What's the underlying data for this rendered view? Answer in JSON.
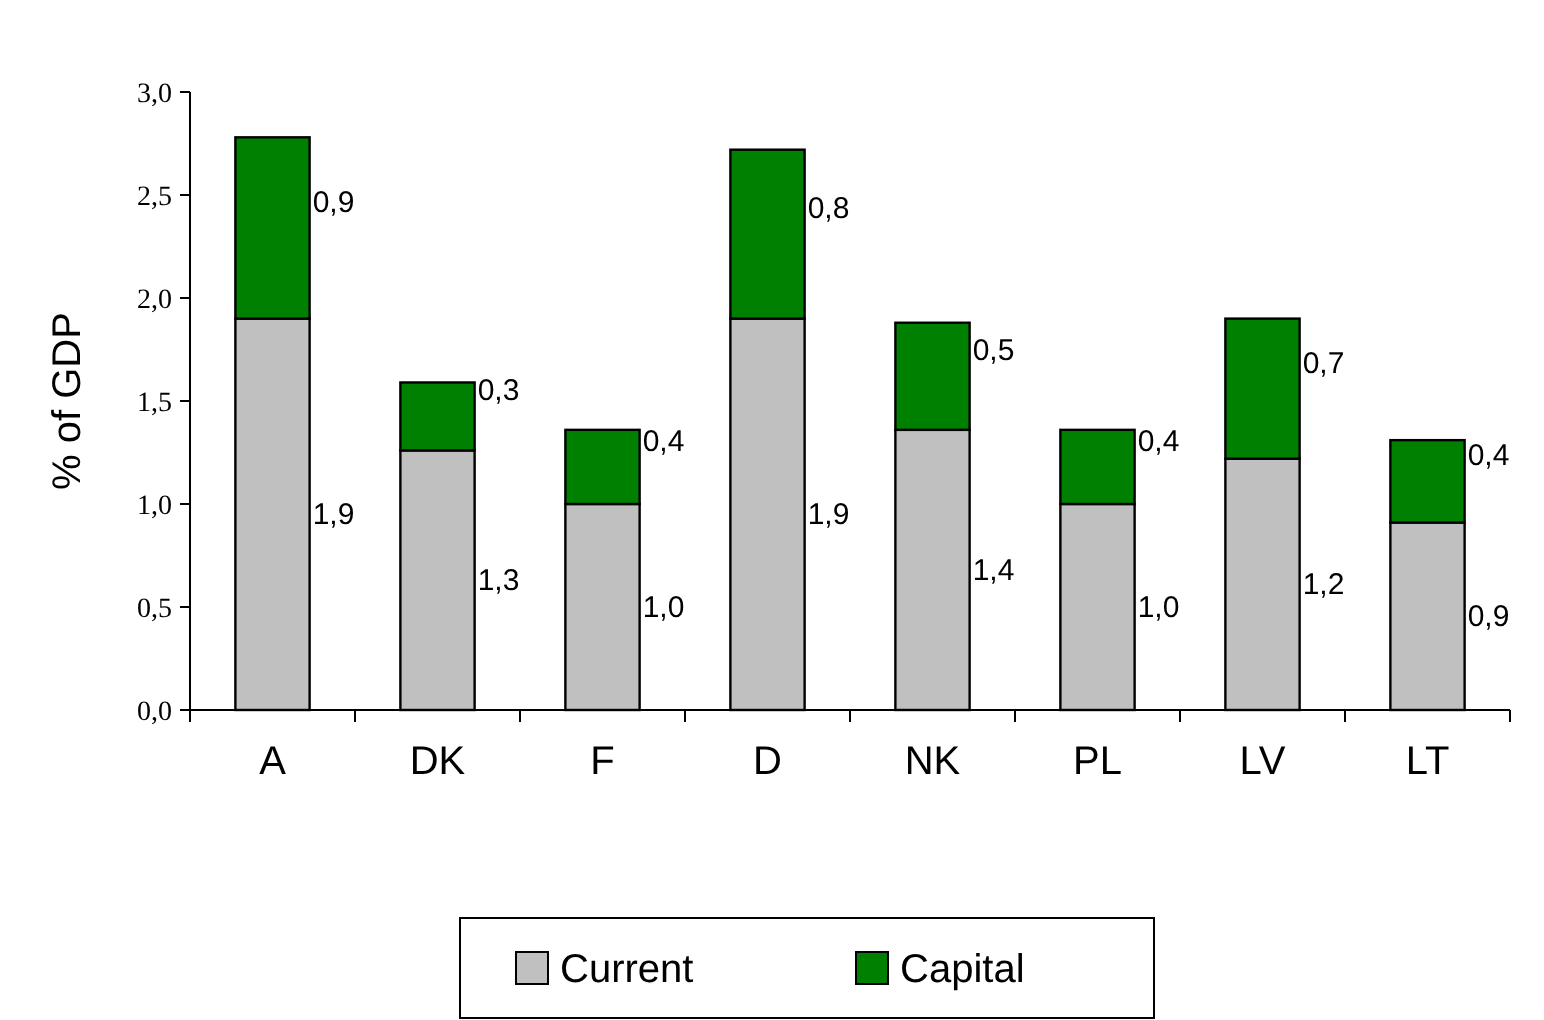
{
  "chart_data": {
    "type": "bar",
    "stacked": true,
    "ylabel": "% of GDP",
    "categories": [
      "A",
      "DK",
      "F",
      "D",
      "NK",
      "PL",
      "LV",
      "LT"
    ],
    "series": [
      {
        "name": "Current",
        "color": "#c0c0c0",
        "values": [
          1.9,
          1.26,
          1.0,
          1.9,
          1.36,
          1.0,
          1.22,
          0.91
        ],
        "value_labels": [
          "1,9",
          "1,3",
          "1,0",
          "1,9",
          "1,4",
          "1,0",
          "1,2",
          "0,9"
        ]
      },
      {
        "name": "Capital",
        "color": "#008000",
        "values": [
          0.88,
          0.33,
          0.36,
          0.82,
          0.52,
          0.36,
          0.68,
          0.4
        ],
        "value_labels": [
          "0,9",
          "0,3",
          "0,4",
          "0,8",
          "0,5",
          "0,4",
          "0,7",
          "0,4"
        ]
      }
    ],
    "ylim": [
      0,
      3
    ],
    "yticks": [
      {
        "value": 0,
        "label": "0,0"
      },
      {
        "value": 0.5,
        "label": "0,5"
      },
      {
        "value": 1,
        "label": "1,0"
      },
      {
        "value": 1.5,
        "label": "1,5"
      },
      {
        "value": 2,
        "label": "2,0"
      },
      {
        "value": 2.5,
        "label": "2,5"
      },
      {
        "value": 3,
        "label": "3,0"
      }
    ],
    "legend": "bottom"
  }
}
